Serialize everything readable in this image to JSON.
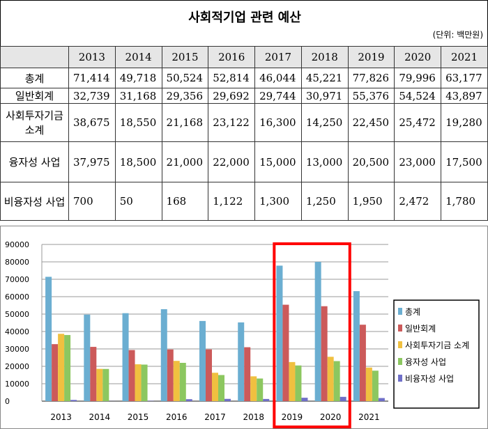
{
  "title": "사회적기업 관련 예산",
  "unit": "(단위: 백만원)",
  "table": {
    "years": [
      "2013",
      "2014",
      "2015",
      "2016",
      "2017",
      "2018",
      "2019",
      "2020",
      "2021"
    ],
    "rows": [
      {
        "label": "총계",
        "values": [
          "71,414",
          "49,718",
          "50,524",
          "52,814",
          "46,044",
          "45,221",
          "77,826",
          "79,996",
          "63,177"
        ]
      },
      {
        "label": "일반회계",
        "values": [
          "32,739",
          "31,168",
          "29,356",
          "29,692",
          "29,744",
          "30,971",
          "55,376",
          "54,524",
          "43,897"
        ]
      },
      {
        "label": "사회투자기금 소계",
        "values": [
          "38,675",
          "18,550",
          "21,168",
          "23,122",
          "16,300",
          "14,250",
          "22,450",
          "25,472",
          "19,280"
        ]
      },
      {
        "label": "융자성 사업",
        "values": [
          "37,975",
          "18,500",
          "21,000",
          "22,000",
          "15,000",
          "13,000",
          "20,500",
          "23,000",
          "17,500"
        ]
      },
      {
        "label": "비융자성 사업",
        "values": [
          "700",
          "50",
          "168",
          "1,122",
          "1,300",
          "1,250",
          "1,950",
          "2,472",
          "1,780"
        ]
      }
    ]
  },
  "chart_data": {
    "type": "bar",
    "categories": [
      "2013",
      "2014",
      "2015",
      "2016",
      "2017",
      "2018",
      "2019",
      "2020",
      "2021"
    ],
    "series": [
      {
        "name": "총계",
        "color": "#6baed1",
        "values": [
          71414,
          49718,
          50524,
          52814,
          46044,
          45221,
          77826,
          79996,
          63177
        ]
      },
      {
        "name": "일반회계",
        "color": "#cc5a5a",
        "values": [
          32739,
          31168,
          29356,
          29692,
          29744,
          30971,
          55376,
          54524,
          43897
        ]
      },
      {
        "name": "사회투자기금 소계",
        "color": "#f0c040",
        "values": [
          38675,
          18550,
          21168,
          23122,
          16300,
          14250,
          22450,
          25472,
          19280
        ]
      },
      {
        "name": "융자성 사업",
        "color": "#8cc760",
        "values": [
          37975,
          18500,
          21000,
          22000,
          15000,
          13000,
          20500,
          23000,
          17500
        ]
      },
      {
        "name": "비융자성 사업",
        "color": "#6f6fc8",
        "values": [
          700,
          50,
          168,
          1122,
          1300,
          1250,
          1950,
          2472,
          1780
        ]
      }
    ],
    "yticks": [
      "0",
      "10000",
      "20000",
      "30000",
      "40000",
      "50000",
      "60000",
      "70000",
      "80000",
      "90000"
    ],
    "ylim": [
      0,
      90000
    ],
    "grid": true,
    "legend": "right",
    "highlight": [
      "2019",
      "2020"
    ],
    "highlight_color": "#ff0000"
  }
}
